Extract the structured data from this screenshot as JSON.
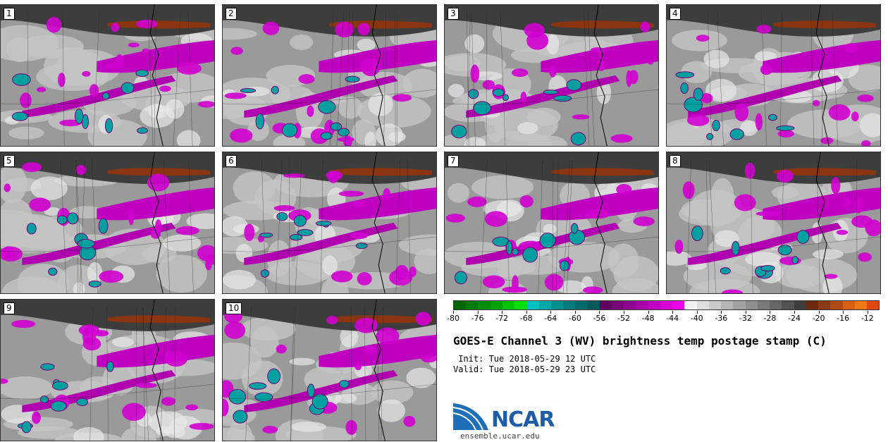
{
  "panels": [
    {
      "label": "1"
    },
    {
      "label": "2"
    },
    {
      "label": "3"
    },
    {
      "label": "4"
    },
    {
      "label": "5"
    },
    {
      "label": "6"
    },
    {
      "label": "7"
    },
    {
      "label": "8"
    },
    {
      "label": "9"
    },
    {
      "label": "10"
    }
  ],
  "colorbar": {
    "min": -80,
    "max": -10,
    "step": 2,
    "tick_labels": [
      "-80",
      "-76",
      "-72",
      "-68",
      "-64",
      "-60",
      "-56",
      "-52",
      "-48",
      "-44",
      "-40",
      "-36",
      "-32",
      "-28",
      "-24",
      "-20",
      "-16",
      "-12"
    ],
    "tick_values": [
      -80,
      -76,
      -72,
      -68,
      -64,
      -60,
      -56,
      -52,
      -48,
      -44,
      -40,
      -36,
      -32,
      -28,
      -24,
      -20,
      -16,
      -12
    ],
    "colors": [
      "#0a6b0a",
      "#0b7f0b",
      "#0c930c",
      "#0ea70e",
      "#10bb10",
      "#12d012",
      "#16e216",
      "#00c8c8",
      "#00b0b0",
      "#009c9c",
      "#008a8a",
      "#007878",
      "#006868",
      "#005a5a",
      "#7a007a",
      "#8c008c",
      "#9e009e",
      "#b000b0",
      "#c200c2",
      "#d400d4",
      "#e600e6",
      "#f0f0f0",
      "#e0e0e0",
      "#cfcfcf",
      "#bebebe",
      "#adadad",
      "#9c9c9c",
      "#8b8b8b",
      "#7a7a7a",
      "#696969",
      "#585858",
      "#474747",
      "#363636",
      "#6b2a10",
      "#8a3510",
      "#a84010",
      "#c65010",
      "#e06010",
      "#f07010",
      "#f05a10",
      "#d84010",
      "#c03010",
      "#a82010",
      "#902010",
      "#f07a00"
    ]
  },
  "title": "GOES-E Channel 3 (WV) brightness temp postage stamp (C)",
  "init": " Init: Tue 2018-05-29 12 UTC",
  "valid": "Valid: Tue 2018-05-29 23 UTC",
  "logo_text": "NCAR",
  "site": "ensemble.ucar.edu"
}
